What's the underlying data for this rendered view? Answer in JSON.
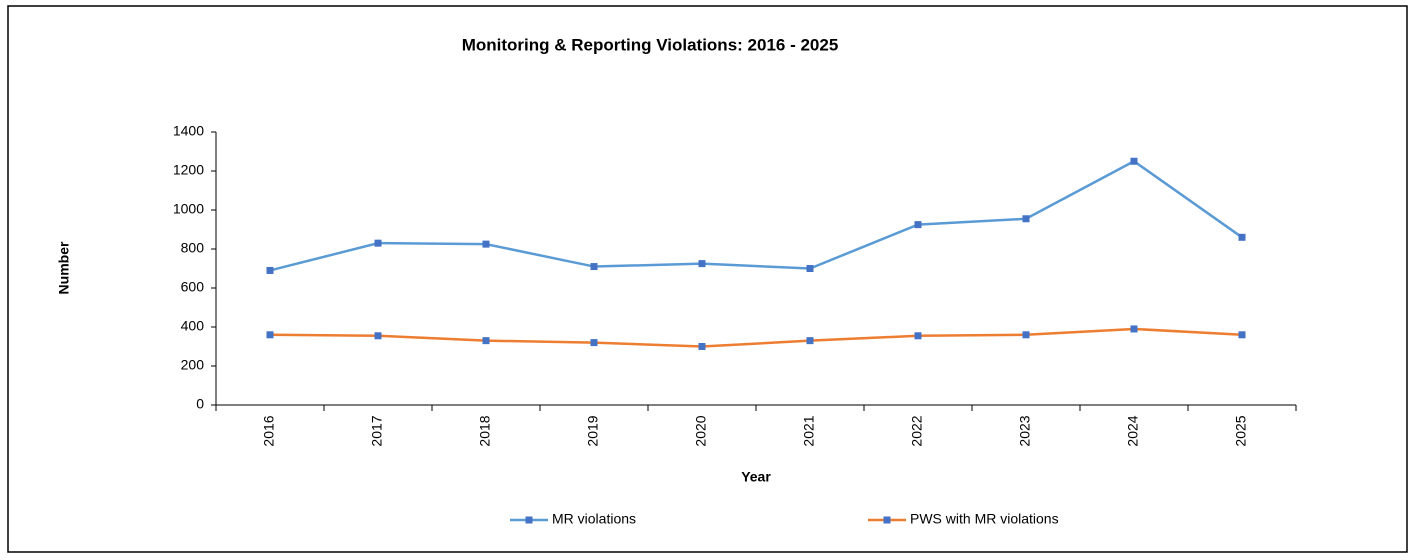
{
  "chart_data": {
    "type": "line",
    "title": "Monitoring & Reporting Violations: 2016 - 2025",
    "x_label": "Year",
    "y_label": "Number",
    "categories": [
      "2016",
      "2017",
      "2018",
      "2019",
      "2020",
      "2021",
      "2022",
      "2023",
      "2024",
      "2025"
    ],
    "series": [
      {
        "name": "MR violations",
        "color": "#5b9bd5",
        "marker_color": "#4472c4",
        "values": [
          690,
          830,
          825,
          710,
          725,
          700,
          925,
          955,
          1250,
          860
        ]
      },
      {
        "name": "PWS with MR violations",
        "color": "#ed7d31",
        "marker_color": "#4472c4",
        "values": [
          360,
          355,
          330,
          320,
          300,
          330,
          355,
          360,
          390,
          360
        ]
      }
    ],
    "ylim": [
      0,
      1400
    ],
    "yticks": [
      0,
      200,
      400,
      600,
      800,
      1000,
      1200,
      1400
    ],
    "grid": false,
    "legend": "bottom"
  }
}
